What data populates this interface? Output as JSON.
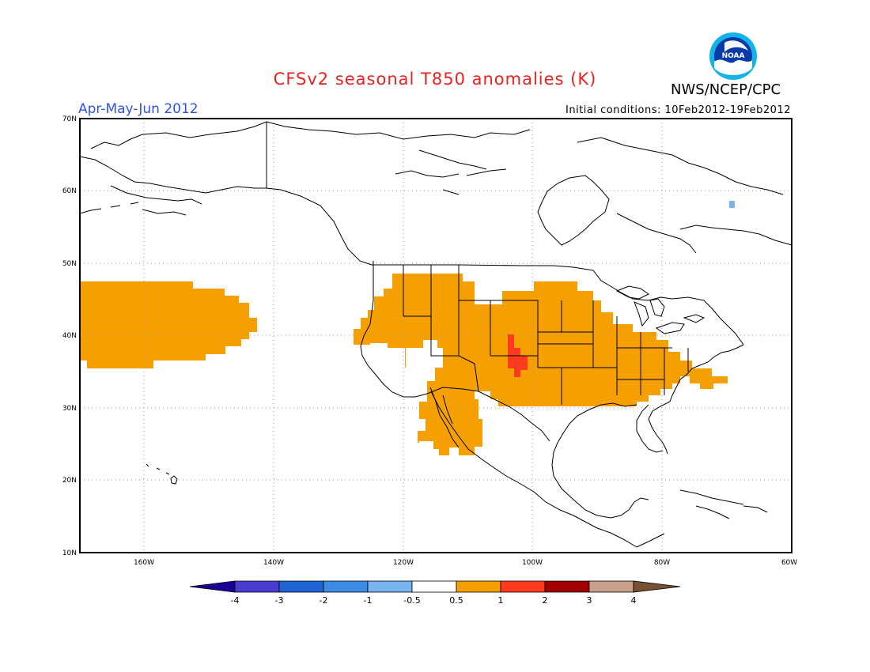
{
  "title": "CFSv2 seasonal T850 anomalies (K)",
  "organization": "NWS/NCEP/CPC",
  "logo_text": "NOAA",
  "period": "Apr-May-Jun 2012",
  "initial_conditions": "Initial conditions: 10Feb2012-19Feb2012",
  "map": {
    "lon_range": [
      -170,
      -60
    ],
    "lat_range": [
      10,
      70
    ],
    "lat_labels": [
      "70N",
      "60N",
      "50N",
      "40N",
      "30N",
      "20N",
      "10N"
    ],
    "lon_labels": [
      "160W",
      "140W",
      "120W",
      "100W",
      "80W",
      "60W"
    ],
    "grid": "dotted"
  },
  "anomaly_regions": [
    {
      "category": "0.5 to 1",
      "color": "#f5a000",
      "area": "Pacific Ocean 145W-170W, 35N-47N"
    },
    {
      "category": "0.5 to 1",
      "color": "#f5a000",
      "area": "Western and central United States, Mexico, Southeast US"
    },
    {
      "category": "1 to 2",
      "color": "#ff3b1f",
      "area": "Eastern Colorado / Kansas border"
    },
    {
      "category": "-1 to -0.5",
      "color": "#78b4f0",
      "area": "Northern Quebec"
    }
  ],
  "colorbar": {
    "labels": [
      "-4",
      "-3",
      "-2",
      "-1",
      "-0.5",
      "0.5",
      "1",
      "2",
      "3",
      "4"
    ],
    "colors": [
      "#1b0096",
      "#4b3cd0",
      "#1e64d2",
      "#3c8ce6",
      "#78b4f0",
      "#ffffff",
      "#f5a000",
      "#ff3b1f",
      "#a00000",
      "#c8a08c",
      "#785032"
    ]
  }
}
